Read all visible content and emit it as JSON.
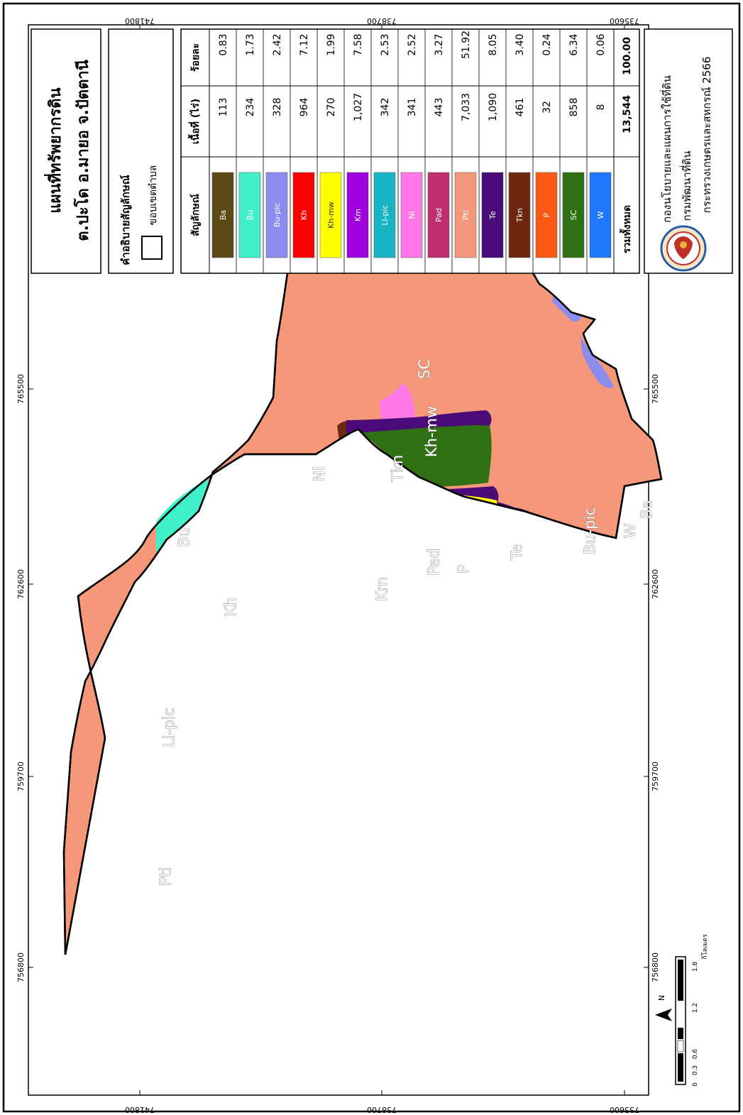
{
  "title": {
    "line1": "แผนที่ทรัพยากรดิน",
    "line2": "ต.ปะโด อ.มายอ จ.ปัตตานี"
  },
  "legend": {
    "title": "คำอธิบายสัญลักษณ์",
    "boundary_label": "ขอบเขตตำบล"
  },
  "table": {
    "headers": [
      "สัญลักษณ์",
      "เนื้อที่ (ไร่)",
      "ร้อยละ"
    ],
    "rows": [
      {
        "symbol": "Ba",
        "area": "113",
        "percent": "0.83",
        "color": "#5a4a16"
      },
      {
        "symbol": "Bu",
        "area": "234",
        "percent": "1.73",
        "color": "#40f0c8"
      },
      {
        "symbol": "Bu-pic",
        "area": "328",
        "percent": "2.42",
        "color": "#8c8cf0"
      },
      {
        "symbol": "Kh",
        "area": "964",
        "percent": "7.12",
        "color": "#ff0000"
      },
      {
        "symbol": "Kh-mw",
        "area": "270",
        "percent": "1.99",
        "color": "#ffff00"
      },
      {
        "symbol": "Km",
        "area": "1,027",
        "percent": "7.58",
        "color": "#a000e0"
      },
      {
        "symbol": "Ll-pic",
        "area": "342",
        "percent": "2.53",
        "color": "#18b4c4"
      },
      {
        "symbol": "Ni",
        "area": "341",
        "percent": "2.52",
        "color": "#ff78e6"
      },
      {
        "symbol": "Pad",
        "area": "443",
        "percent": "3.27",
        "color": "#c03070"
      },
      {
        "symbol": "Ptl",
        "area": "7,033",
        "percent": "51.92",
        "color": "#f5987a"
      },
      {
        "symbol": "Te",
        "area": "1,090",
        "percent": "8.05",
        "color": "#4a0a78"
      },
      {
        "symbol": "Tkn",
        "area": "461",
        "percent": "3.40",
        "color": "#6e2810"
      },
      {
        "symbol": "P",
        "area": "32",
        "percent": "0.24",
        "color": "#ff5a14"
      },
      {
        "symbol": "SC",
        "area": "858",
        "percent": "6.34",
        "color": "#2e7012"
      },
      {
        "symbol": "W",
        "area": "8",
        "percent": "0.06",
        "color": "#1e78ff"
      }
    ],
    "total_label": "รวมทั้งหมด",
    "total_area": "13,544",
    "total_percent": "100.00"
  },
  "organization": {
    "line1": "กองนโยบายและแผนการใช้ที่ดิน",
    "line2": "กรมพัฒนาที่ดิน",
    "line3": "กระทรวงเกษตรและสหกรณ์ 2566"
  },
  "grid": {
    "top_labels": [
      "756800",
      "759700",
      "762600",
      "765500"
    ],
    "bottom_labels": [
      "756800",
      "759700",
      "762600",
      "765500"
    ],
    "side_labels": [
      "741800",
      "738700",
      "735600"
    ]
  },
  "scale_bar": {
    "ticks": [
      "0",
      "0.3",
      "0.6",
      "1.2",
      "1.8"
    ],
    "unit": "กิโลเมตร"
  },
  "north_arrow": {
    "label": "N"
  },
  "map_labels": {
    "Ptl": "Ptl",
    "Ll-pic": "Ll-pic",
    "Bu": "Bu",
    "Kh": "Kh",
    "Ni": "Ni",
    "Km": "Km",
    "Tkn": "Tkn",
    "Pad": "Pad",
    "Kh-mw": "Kh-mw",
    "SC": "SC",
    "P": "P",
    "Te": "Te",
    "Bu-pic": "Bu-pic",
    "W": "W",
    "Ba": "Ba"
  },
  "emblem": "seal-emblem"
}
